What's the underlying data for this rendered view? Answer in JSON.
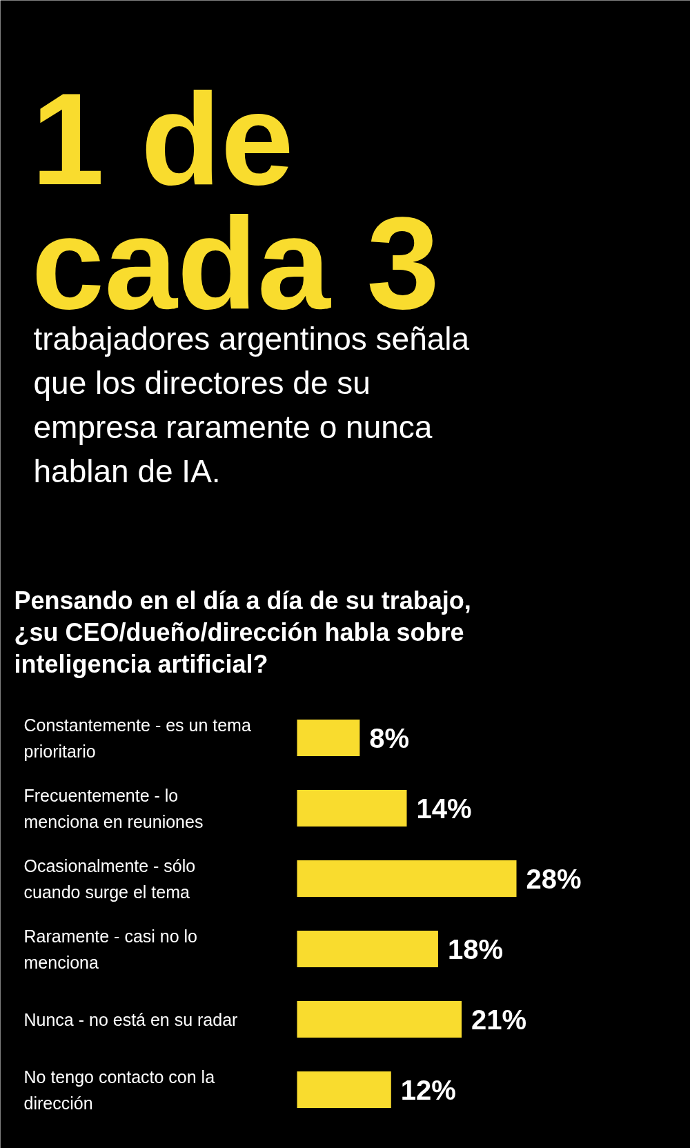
{
  "chart_data": {
    "type": "bar",
    "orientation": "horizontal",
    "title": "1 de cada 3",
    "subtitle": "trabajadores argentinos señala que los directores de su empresa raramente o nunca hablan de IA.",
    "annotations": [
      "Pensando en el día a día de su trabajo, ¿su CEO/dueño/dirección habla sobre inteligencia artificial?"
    ],
    "categories": [
      "Constantemente - es un tema prioritario",
      "Frecuentemente - lo menciona en reuniones",
      "Ocasionalmente - sólo cuando surge el tema",
      "Raramente - casi no lo menciona",
      "Nunca - no está en su radar",
      "No tengo contacto con la dirección"
    ],
    "values": [
      8,
      14,
      28,
      18,
      21,
      12
    ],
    "value_labels": [
      "8%",
      "14%",
      "28%",
      "18%",
      "21%",
      "12%"
    ],
    "color": "#f9dc2e"
  }
}
